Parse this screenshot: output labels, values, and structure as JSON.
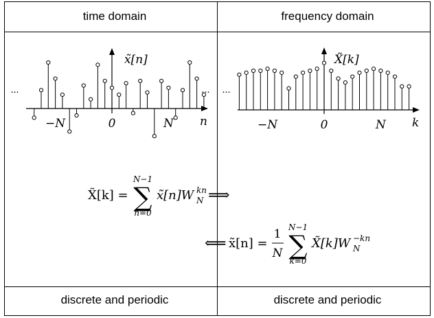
{
  "headers": {
    "left": "time domain",
    "right": "frequency domain"
  },
  "footers": {
    "left": "discrete and periodic",
    "right": "discrete and periodic"
  },
  "time_plot": {
    "signal_label": "x̃[n]",
    "axis_var": "n",
    "ellipsis": "···",
    "ticks": [
      {
        "n": -8,
        "label": "−N"
      },
      {
        "n": 0,
        "label": "0"
      },
      {
        "n": 8,
        "label": "N"
      }
    ],
    "samples": [
      -0.2,
      0.4,
      1.0,
      0.65,
      0.3,
      -0.5,
      -0.15,
      0.5,
      0.2,
      0.95,
      0.6,
      0.45,
      0.3,
      0.55,
      -0.1,
      0.6,
      0.35,
      -0.6,
      0.6,
      0.45,
      -0.2,
      0.4,
      1.0,
      0.65,
      0.3
    ]
  },
  "freq_plot": {
    "signal_label": "X̃[k]",
    "axis_var": "k",
    "ellipsis": "···",
    "ticks": [
      {
        "k": -8,
        "label": "−N"
      },
      {
        "k": 0,
        "label": "0"
      },
      {
        "k": 8,
        "label": "N"
      }
    ],
    "samples": [
      0.9,
      0.95,
      1.0,
      1.0,
      1.05,
      1.0,
      0.95,
      0.55,
      0.85,
      0.95,
      1.0,
      1.05,
      1.2,
      1.0,
      0.8,
      0.7,
      0.85,
      0.95,
      1.0,
      1.05,
      1.0,
      0.95,
      0.85,
      0.6,
      0.6
    ]
  },
  "formulas": {
    "dft": {
      "lhs": "X̃[k] =",
      "upper": "N−1",
      "lower": "n=0",
      "body_x": "x̃[n]W",
      "sup": "kn",
      "sub": "N",
      "arrow": "⟹"
    },
    "idft": {
      "arrow": "⟸",
      "lhs": "x̃[n] =",
      "frac_num": "1",
      "frac_den": "N",
      "upper": "N−1",
      "lower": "k=0",
      "body_x": "X̃[k]W",
      "sup": "−kn",
      "sub": "N"
    }
  }
}
